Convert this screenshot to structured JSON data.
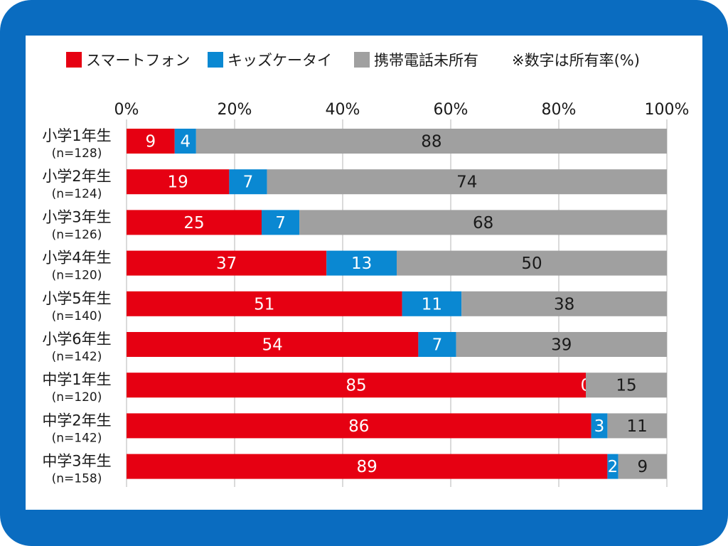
{
  "chart_data": {
    "type": "bar",
    "orientation": "horizontal",
    "stacked": true,
    "categories": [
      {
        "name": "小学1年生",
        "n": "(n=128)"
      },
      {
        "name": "小学2年生",
        "n": "(n=124)"
      },
      {
        "name": "小学3年生",
        "n": "(n=126)"
      },
      {
        "name": "小学4年生",
        "n": "(n=120)"
      },
      {
        "name": "小学5年生",
        "n": "(n=140)"
      },
      {
        "name": "小学6年生",
        "n": "(n=142)"
      },
      {
        "name": "中学1年生",
        "n": "(n=120)"
      },
      {
        "name": "中学2年生",
        "n": "(n=142)"
      },
      {
        "name": "中学3年生",
        "n": "(n=158)"
      }
    ],
    "series": [
      {
        "name": "スマートフォン",
        "color": "#e60012",
        "label_color": "#ffffff",
        "values": [
          9,
          19,
          25,
          37,
          51,
          54,
          85,
          86,
          89
        ]
      },
      {
        "name": "キッズケータイ",
        "color": "#0a88d2",
        "label_color": "#ffffff",
        "values": [
          4,
          7,
          7,
          13,
          11,
          7,
          0,
          3,
          2
        ]
      },
      {
        "name": "携帯電話未所有",
        "color": "#a0a0a0",
        "label_color": "#1a1a1a",
        "values": [
          88,
          74,
          68,
          50,
          38,
          39,
          15,
          11,
          9
        ]
      }
    ],
    "note": "※数字は所有率(%)",
    "xlim": [
      0,
      100
    ],
    "xticks": [
      "0%",
      "20%",
      "40%",
      "60%",
      "80%",
      "100%"
    ],
    "grid": true,
    "legend_position": "top"
  },
  "colors": {
    "frame": "#0a6cc0",
    "panel": "#ffffff",
    "grid": "#b4b4b4"
  }
}
